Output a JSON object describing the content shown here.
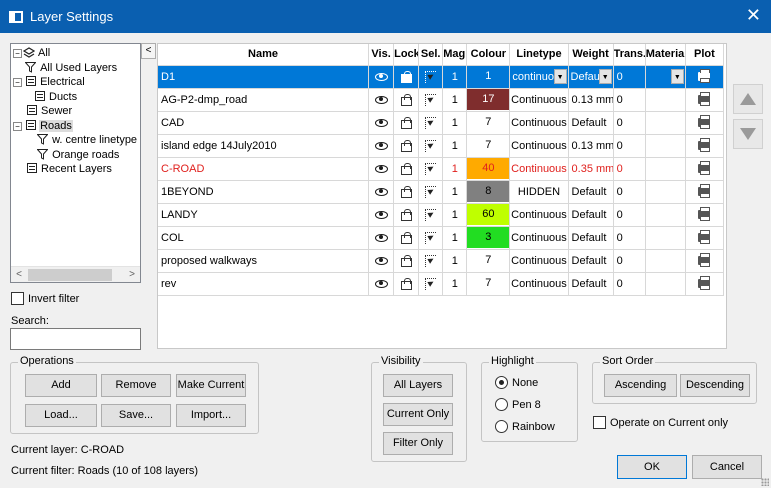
{
  "window": {
    "title": "Layer Settings"
  },
  "tree": {
    "items": [
      {
        "label": "All",
        "level": 0
      },
      {
        "label": "All Used Layers",
        "level": 1
      },
      {
        "label": "Electrical",
        "level": 1
      },
      {
        "label": "Ducts",
        "level": 2
      },
      {
        "label": "Sewer",
        "level": 1
      },
      {
        "label": "Roads",
        "level": 1
      },
      {
        "label": "w. centre linetype",
        "level": 2
      },
      {
        "label": "Orange roads",
        "level": 2
      },
      {
        "label": "Recent Layers",
        "level": 1
      }
    ]
  },
  "invert_filter_label": "Invert filter",
  "search": {
    "label": "Search:",
    "value": ""
  },
  "grid": {
    "columns": [
      "Name",
      "Vis.",
      "Lock",
      "Sel.",
      "Mag.",
      "Colour",
      "Linetype",
      "Weight",
      "Trans.",
      "Material",
      "Plot"
    ],
    "rows": [
      {
        "name": "D1",
        "mag": "1",
        "colour": "1",
        "colour_hex": "#0078d7",
        "linetype": "continuou",
        "weight": "Default",
        "trans": "0"
      },
      {
        "name": "AG-P2-dmp_road",
        "mag": "1",
        "colour": "17",
        "colour_hex": "#7f2d2d",
        "linetype": "Continuous",
        "weight": "0.13 mm",
        "trans": "0"
      },
      {
        "name": "CAD",
        "mag": "1",
        "colour": "7",
        "colour_hex": "#ffffff",
        "linetype": "Continuous",
        "weight": "Default",
        "trans": "0"
      },
      {
        "name": "island edge 14July2010",
        "mag": "1",
        "colour": "7",
        "colour_hex": "#ffffff",
        "linetype": "Continuous",
        "weight": "0.13 mm",
        "trans": "0"
      },
      {
        "name": "C-ROAD",
        "mag": "1",
        "colour": "40",
        "colour_hex": "#ffaa00",
        "linetype": "Continuous",
        "weight": "0.35 mm",
        "trans": "0"
      },
      {
        "name": "1BEYOND",
        "mag": "1",
        "colour": "8",
        "colour_hex": "#808080",
        "linetype": "HIDDEN",
        "weight": "Default",
        "trans": "0"
      },
      {
        "name": "LANDY",
        "mag": "1",
        "colour": "60",
        "colour_hex": "#bfff00",
        "linetype": "Continuous",
        "weight": "Default",
        "trans": "0"
      },
      {
        "name": "COL",
        "mag": "1",
        "colour": "3",
        "colour_hex": "#22dd22",
        "linetype": "Continuous",
        "weight": "Default",
        "trans": "0"
      },
      {
        "name": "proposed walkways",
        "mag": "1",
        "colour": "7",
        "colour_hex": "#ffffff",
        "linetype": "Continuous",
        "weight": "Default",
        "trans": "0"
      },
      {
        "name": "rev",
        "mag": "1",
        "colour": "7",
        "colour_hex": "#ffffff",
        "linetype": "Continuous",
        "weight": "Default",
        "trans": "0"
      }
    ]
  },
  "operations": {
    "legend": "Operations",
    "add": "Add",
    "remove": "Remove",
    "make_current": "Make Current",
    "load": "Load...",
    "save": "Save...",
    "import": "Import..."
  },
  "visibility": {
    "legend": "Visibility",
    "all": "All Layers",
    "current": "Current Only",
    "filter": "Filter Only"
  },
  "highlight": {
    "legend": "Highlight",
    "none": "None",
    "pen": "Pen 8",
    "rainbow": "Rainbow",
    "selected": "None"
  },
  "sort": {
    "legend": "Sort Order",
    "asc": "Ascending",
    "desc": "Descending",
    "operate_label": "Operate on Current only"
  },
  "status": {
    "current_layer": "Current layer: C-ROAD",
    "current_filter": "Current filter: Roads (10 of 108 layers)"
  },
  "footer": {
    "ok": "OK",
    "cancel": "Cancel"
  },
  "colors": {
    "title_bar": "#0a5fb0",
    "selection": "#0078d7",
    "red_row_text": "#e0201d"
  }
}
